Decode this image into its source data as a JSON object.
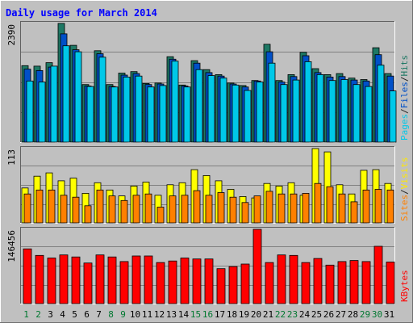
{
  "chart_data": {
    "type": "bar",
    "title": "Daily usage for March 2014",
    "days": [
      "1",
      "2",
      "3",
      "4",
      "5",
      "6",
      "7",
      "8",
      "9",
      "10",
      "11",
      "12",
      "13",
      "14",
      "15",
      "16",
      "17",
      "18",
      "19",
      "20",
      "21",
      "22",
      "23",
      "24",
      "25",
      "26",
      "27",
      "28",
      "29",
      "30",
      "31"
    ],
    "weekend_days": [
      "1",
      "2",
      "8",
      "9",
      "15",
      "16",
      "22",
      "23",
      "29",
      "30"
    ],
    "panels": [
      {
        "id": "hits",
        "max_label": "2390",
        "ymax": 2390,
        "legend": [
          "Pages",
          "/",
          "Files",
          "/",
          "Hits"
        ],
        "legend_colors": [
          "#00C8E8",
          "#222222",
          "#0050C8",
          "#222222",
          "#1E7864"
        ],
        "series": [
          {
            "name": "Hits",
            "color": "#1E7864",
            "values": [
              1540,
              1530,
              1600,
              2390,
              1950,
              1160,
              1840,
              1160,
              1390,
              1420,
              1180,
              1190,
              1720,
              1150,
              1640,
              1460,
              1360,
              1190,
              1140,
              1240,
              1970,
              1240,
              1360,
              1810,
              1480,
              1360,
              1380,
              1290,
              1260,
              1900,
              1380
            ]
          },
          {
            "name": "Files",
            "color": "#0050C8",
            "values": [
              1470,
              1440,
              1510,
              2180,
              1860,
              1130,
              1780,
              1120,
              1350,
              1380,
              1160,
              1170,
              1670,
              1130,
              1590,
              1400,
              1330,
              1170,
              1110,
              1230,
              1820,
              1210,
              1320,
              1740,
              1400,
              1310,
              1320,
              1250,
              1230,
              1760,
              1330
            ]
          },
          {
            "name": "Pages",
            "color": "#00C8E8",
            "values": [
              1230,
              1210,
              1530,
              1940,
              1820,
              1120,
              1710,
              1110,
              1310,
              1330,
              1110,
              1140,
              1630,
              1110,
              1460,
              1340,
              1290,
              1150,
              1040,
              1210,
              1590,
              1160,
              1250,
              1620,
              1360,
              1240,
              1260,
              1160,
              1120,
              1550,
              1030
            ]
          }
        ]
      },
      {
        "id": "visits",
        "max_label": "113",
        "ymax": 113,
        "legend": [
          "Sites",
          "/",
          "Visits"
        ],
        "legend_colors": [
          "#FF8000",
          "#222222",
          "#FFE800"
        ],
        "series": [
          {
            "name": "Visits",
            "color": "#FFFF00",
            "values": [
              53,
              71,
              76,
              64,
              68,
              45,
              61,
              50,
              41,
              56,
              62,
              42,
              58,
              61,
              81,
              72,
              64,
              51,
              40,
              38,
              60,
              56,
              61,
              42,
              113,
              108,
              58,
              44,
              80,
              81,
              60
            ]
          },
          {
            "name": "Sites",
            "color": "#FF8000",
            "values": [
              44,
              50,
              50,
              42,
              39,
              26,
              50,
              41,
              34,
              42,
              44,
              24,
              41,
              42,
              49,
              42,
              46,
              39,
              31,
              41,
              48,
              44,
              44,
              45,
              60,
              55,
              44,
              32,
              50,
              51,
              50
            ]
          }
        ]
      },
      {
        "id": "kbytes",
        "max_label": "146456",
        "ymax": 146456,
        "legend": [
          "KBytes"
        ],
        "legend_colors": [
          "#FF0000"
        ],
        "series": [
          {
            "name": "KBytes",
            "color": "#FF0000",
            "values": [
              108000,
              95000,
              90000,
              96000,
              92000,
              80000,
              96000,
              92000,
              83000,
              94000,
              94000,
              81000,
              84000,
              90000,
              88000,
              88000,
              69000,
              73000,
              78000,
              146456,
              81000,
              96000,
              95000,
              81000,
              89000,
              76000,
              83000,
              85000,
              83000,
              113000,
              82000
            ]
          }
        ]
      }
    ]
  }
}
